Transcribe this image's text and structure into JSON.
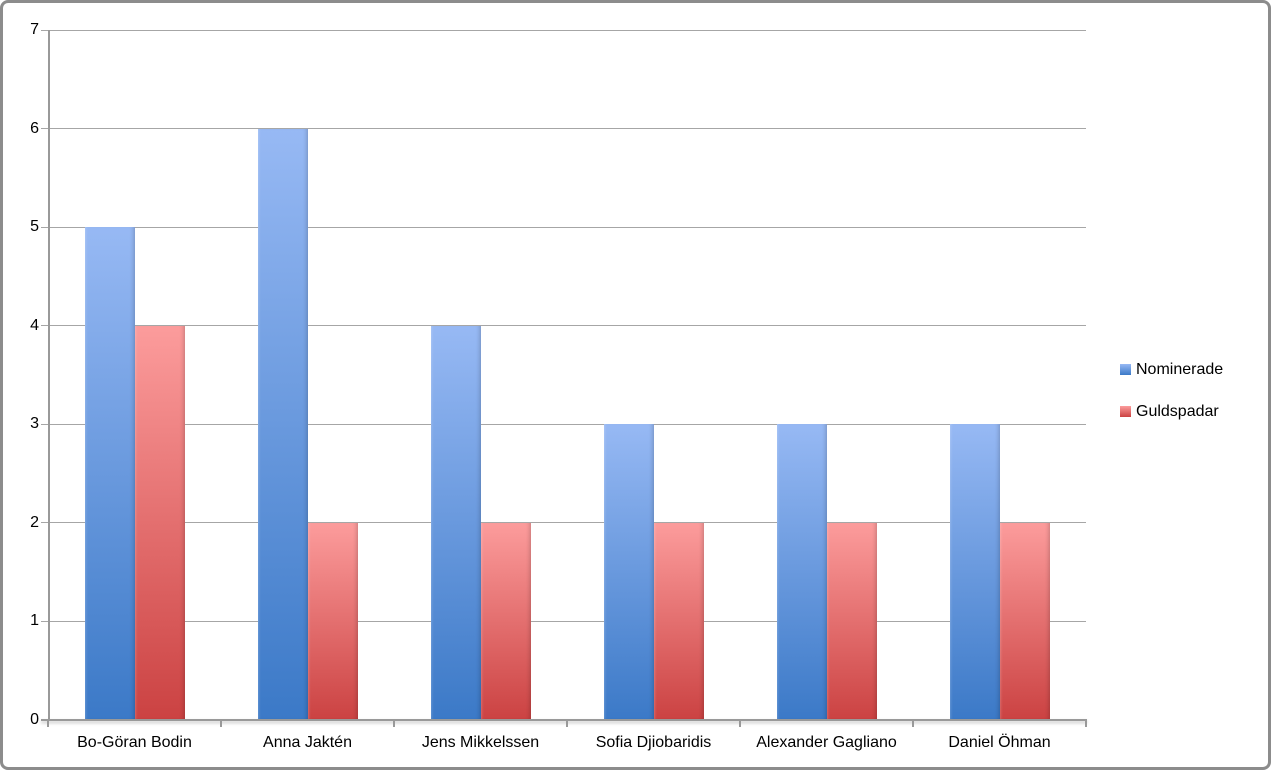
{
  "chart_data": {
    "type": "bar",
    "title": "",
    "xlabel": "",
    "ylabel": "",
    "categories": [
      "Bo-Göran Bodin",
      "Anna Jaktén",
      "Jens Mikkelssen",
      "Sofia Djiobaridis",
      "Alexander Gagliano",
      "Daniel Öhman"
    ],
    "series": [
      {
        "name": "Nominerade",
        "values": [
          5,
          6,
          4,
          3,
          3,
          3
        ],
        "color_top": "#97B9F4",
        "color_bottom": "#3B79C7"
      },
      {
        "name": "Guldspadar",
        "values": [
          4,
          2,
          2,
          2,
          2,
          2
        ],
        "color_top": "#FC9C9C",
        "color_bottom": "#CB4242"
      }
    ],
    "ylim": [
      0,
      7
    ],
    "yticks": [
      0,
      1,
      2,
      3,
      4,
      5,
      6,
      7
    ],
    "grid": true,
    "legend_position": "right"
  },
  "colors": {
    "gridline": "#A6A6A6",
    "axis": "#999999",
    "figure_border": "#8C8C8C",
    "background": "#FFFFFF",
    "text": "#000000"
  }
}
